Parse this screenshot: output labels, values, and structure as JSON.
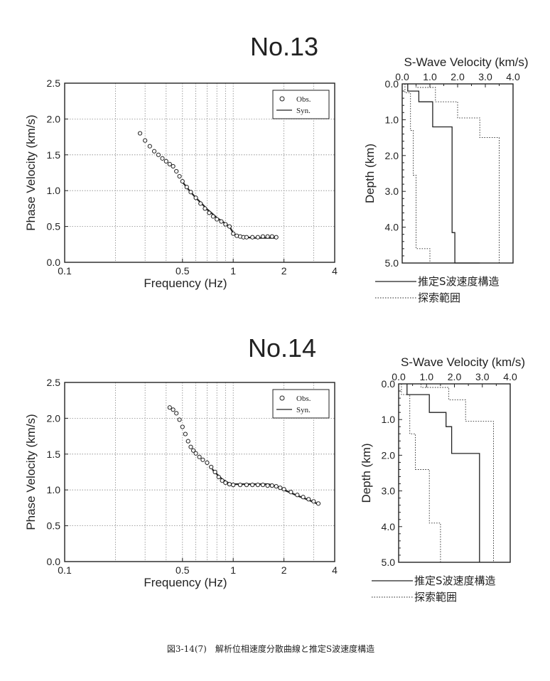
{
  "caption": "図3-14(7)　解析位相速度分散曲線と推定S波速度構造",
  "chart_data": [
    {
      "type": "scatter",
      "panel": "No.13 dispersion",
      "title": "No.13",
      "xlabel": "Frequency (Hz)",
      "ylabel": "Phase Velocity (km/s)",
      "x_scale": "log",
      "xlim": [
        0.1,
        4
      ],
      "ylim": [
        0.0,
        2.5
      ],
      "x_ticks": [
        {
          "v": 0.1,
          "l": "0.1"
        },
        {
          "v": 0.5,
          "l": "0.5"
        },
        {
          "v": 1,
          "l": "1"
        },
        {
          "v": 2,
          "l": "2"
        },
        {
          "v": 4,
          "l": "4"
        }
      ],
      "y_ticks": [
        {
          "v": 0.0,
          "l": "0.0"
        },
        {
          "v": 0.5,
          "l": "0.5"
        },
        {
          "v": 1.0,
          "l": "1.0"
        },
        {
          "v": 1.5,
          "l": "1.5"
        },
        {
          "v": 2.0,
          "l": "2.0"
        },
        {
          "v": 2.5,
          "l": "2.5"
        }
      ],
      "grid": true,
      "legend_position": "top-right",
      "legend": [
        "Obs.",
        "Syn."
      ],
      "series": [
        {
          "name": "Obs.",
          "marker": "circle",
          "x": [
            0.28,
            0.3,
            0.32,
            0.34,
            0.36,
            0.38,
            0.4,
            0.42,
            0.44,
            0.46,
            0.48,
            0.5,
            0.53,
            0.56,
            0.6,
            0.64,
            0.68,
            0.72,
            0.76,
            0.8,
            0.85,
            0.9,
            0.95,
            1.0,
            1.05,
            1.1,
            1.15,
            1.2,
            1.3,
            1.4,
            1.5,
            1.6,
            1.7,
            1.8
          ],
          "y": [
            1.8,
            1.7,
            1.62,
            1.55,
            1.5,
            1.45,
            1.41,
            1.37,
            1.34,
            1.27,
            1.2,
            1.13,
            1.05,
            0.98,
            0.9,
            0.82,
            0.75,
            0.69,
            0.64,
            0.6,
            0.57,
            0.53,
            0.5,
            0.4,
            0.37,
            0.36,
            0.35,
            0.35,
            0.35,
            0.35,
            0.36,
            0.36,
            0.36,
            0.35
          ]
        },
        {
          "name": "Syn.",
          "line": "solid",
          "x": [
            0.5,
            0.55,
            0.6,
            0.65,
            0.7,
            0.75,
            0.8,
            0.85,
            0.9,
            0.95,
            1.0,
            1.05,
            1.1,
            1.2,
            1.3,
            1.4,
            1.5,
            1.6,
            1.7,
            1.8
          ],
          "y": [
            1.12,
            1.0,
            0.9,
            0.82,
            0.74,
            0.68,
            0.62,
            0.58,
            0.54,
            0.5,
            0.41,
            0.37,
            0.36,
            0.35,
            0.34,
            0.34,
            0.34,
            0.34,
            0.34,
            0.34
          ]
        }
      ]
    },
    {
      "type": "line",
      "panel": "No.13 velocity structure",
      "title": "S-Wave Velocity (km/s)",
      "ylabel": "Depth (km)",
      "xlim": [
        0.0,
        4.0
      ],
      "ylim": [
        0.0,
        5.0
      ],
      "x_ticks": [
        {
          "v": 0,
          "l": "0.0"
        },
        {
          "v": 1,
          "l": "1.0"
        },
        {
          "v": 2,
          "l": "2.0"
        },
        {
          "v": 3,
          "l": "3.0"
        },
        {
          "v": 4,
          "l": "4.0"
        }
      ],
      "y_ticks": [
        {
          "v": 0,
          "l": "0.0"
        },
        {
          "v": 1,
          "l": "1.0"
        },
        {
          "v": 2,
          "l": "2.0"
        },
        {
          "v": 3,
          "l": "3.0"
        },
        {
          "v": 4,
          "l": "4.0"
        },
        {
          "v": 5,
          "l": "5.0"
        }
      ],
      "series": [
        {
          "name": "推定S波速度構造",
          "line": "solid",
          "velocity": [
            0.2,
            0.6,
            1.1,
            1.8,
            1.9,
            2.8
          ],
          "depth_boundaries": [
            0.2,
            0.5,
            1.2,
            4.15
          ]
        },
        {
          "name": "探索範囲",
          "line": "dotted",
          "velocity": [
            0.1,
            0.3,
            0.4,
            0.5,
            1.0,
            1.3
          ],
          "depth_boundaries": [
            0.25,
            1.3,
            2.55,
            4.6
          ]
        },
        {
          "name": "探索範囲",
          "line": "dotted",
          "velocity": [
            0.5,
            1.2,
            2.0,
            2.8,
            3.5
          ],
          "depth_boundaries": [
            0.1,
            0.5,
            0.95,
            1.5
          ]
        }
      ]
    },
    {
      "type": "scatter",
      "panel": "No.14 dispersion",
      "title": "No.14",
      "xlabel": "Frequency (Hz)",
      "ylabel": "Phase Velocity (km/s)",
      "x_scale": "log",
      "xlim": [
        0.1,
        4
      ],
      "ylim": [
        0.0,
        2.5
      ],
      "x_ticks": [
        {
          "v": 0.1,
          "l": "0.1"
        },
        {
          "v": 0.5,
          "l": "0.5"
        },
        {
          "v": 1,
          "l": "1"
        },
        {
          "v": 2,
          "l": "2"
        },
        {
          "v": 4,
          "l": "4"
        }
      ],
      "y_ticks": [
        {
          "v": 0.0,
          "l": "0.0"
        },
        {
          "v": 0.5,
          "l": "0.5"
        },
        {
          "v": 1.0,
          "l": "1.0"
        },
        {
          "v": 1.5,
          "l": "1.5"
        },
        {
          "v": 2.0,
          "l": "2.0"
        },
        {
          "v": 2.5,
          "l": "2.5"
        }
      ],
      "grid": true,
      "legend_position": "top-right",
      "legend": [
        "Obs.",
        "Syn."
      ],
      "series": [
        {
          "name": "Obs.",
          "marker": "circle",
          "x": [
            0.42,
            0.44,
            0.46,
            0.48,
            0.5,
            0.52,
            0.54,
            0.56,
            0.58,
            0.6,
            0.63,
            0.66,
            0.7,
            0.74,
            0.78,
            0.82,
            0.86,
            0.9,
            0.95,
            1.0,
            1.1,
            1.2,
            1.3,
            1.4,
            1.5,
            1.6,
            1.7,
            1.8,
            1.9,
            2.0,
            2.2,
            2.4,
            2.6,
            2.8,
            3.0,
            3.2
          ],
          "y": [
            2.15,
            2.12,
            2.07,
            1.98,
            1.88,
            1.78,
            1.68,
            1.6,
            1.55,
            1.51,
            1.46,
            1.42,
            1.38,
            1.32,
            1.25,
            1.18,
            1.13,
            1.1,
            1.08,
            1.07,
            1.07,
            1.07,
            1.07,
            1.07,
            1.07,
            1.06,
            1.06,
            1.05,
            1.03,
            1.01,
            0.97,
            0.93,
            0.9,
            0.87,
            0.84,
            0.81
          ]
        },
        {
          "name": "Syn.",
          "line": "solid",
          "x": [
            0.75,
            0.8,
            0.85,
            0.9,
            0.95,
            1.0,
            1.1,
            1.2,
            1.3,
            1.4,
            1.5,
            1.6,
            1.7,
            1.8,
            1.9,
            2.0,
            2.2,
            2.4,
            2.6,
            2.8,
            3.0,
            3.2
          ],
          "y": [
            1.29,
            1.22,
            1.16,
            1.12,
            1.09,
            1.08,
            1.08,
            1.08,
            1.08,
            1.08,
            1.08,
            1.08,
            1.07,
            1.05,
            1.03,
            1.0,
            0.96,
            0.92,
            0.89,
            0.86,
            0.83,
            0.8
          ]
        }
      ]
    },
    {
      "type": "line",
      "panel": "No.14 velocity structure",
      "title": "S-Wave Velocity (km/s)",
      "ylabel": "Depth (km)",
      "xlim": [
        0.0,
        4.0
      ],
      "ylim": [
        0.0,
        5.0
      ],
      "x_ticks": [
        {
          "v": 0,
          "l": "0.0"
        },
        {
          "v": 1,
          "l": "1.0"
        },
        {
          "v": 2,
          "l": "2.0"
        },
        {
          "v": 3,
          "l": "3.0"
        },
        {
          "v": 4,
          "l": "4.0"
        }
      ],
      "y_ticks": [
        {
          "v": 0,
          "l": "0.0"
        },
        {
          "v": 1,
          "l": "1.0"
        },
        {
          "v": 2,
          "l": "2.0"
        },
        {
          "v": 3,
          "l": "3.0"
        },
        {
          "v": 4,
          "l": "4.0"
        },
        {
          "v": 5,
          "l": "5.0"
        }
      ],
      "series": [
        {
          "name": "推定S波速度構造",
          "line": "solid",
          "velocity": [
            0.3,
            1.1,
            1.7,
            1.9,
            2.9
          ],
          "depth_boundaries": [
            0.3,
            0.8,
            1.2,
            1.95
          ]
        },
        {
          "name": "探索範囲",
          "line": "dotted",
          "velocity": [
            0.1,
            0.4,
            0.6,
            1.1,
            1.5,
            2.5
          ],
          "depth_boundaries": [
            0.3,
            1.4,
            2.4,
            3.9
          ]
        },
        {
          "name": "探索範囲",
          "line": "dotted",
          "velocity": [
            0.8,
            1.8,
            2.4,
            3.4
          ],
          "depth_boundaries": [
            0.1,
            0.45,
            1.05
          ]
        }
      ]
    }
  ]
}
